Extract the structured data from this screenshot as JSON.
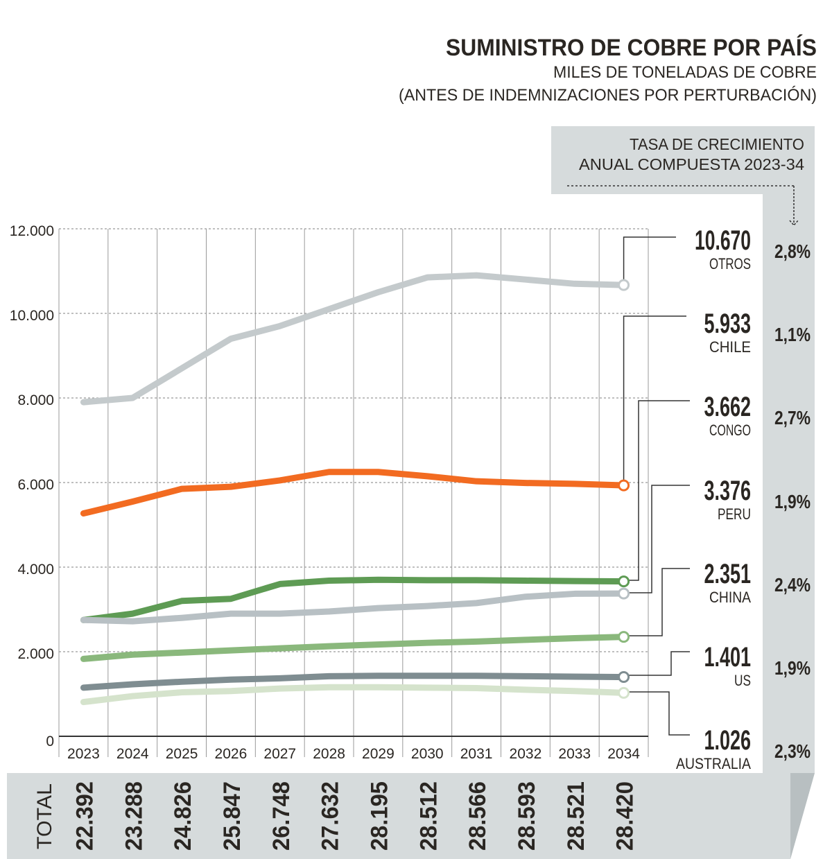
{
  "chart_data": {
    "type": "line",
    "title": "SUMINISTRO DE COBRE POR PAÍS",
    "subtitle_1": "MILES DE TONELADAS DE COBRE",
    "subtitle_2": "(ANTES DE INDEMNIZACIONES POR PERTURBACIÓN)",
    "growth_header_1": "TASA DE CRECIMIENTO",
    "growth_header_2": "ANUAL COMPUESTA 2023-34",
    "xlabel": "",
    "ylabel": "",
    "ylim": [
      0,
      12000
    ],
    "yticks": [
      0,
      2000,
      4000,
      6000,
      8000,
      10000,
      12000
    ],
    "ytick_labels": [
      "0",
      "2.000",
      "4.000",
      "6.000",
      "8.000",
      "10.000",
      "12.000"
    ],
    "categories": [
      "2023",
      "2024",
      "2025",
      "2026",
      "2027",
      "2028",
      "2029",
      "2030",
      "2031",
      "2032",
      "2033",
      "2034"
    ],
    "grid": true,
    "series": [
      {
        "name": "OTROS",
        "color": "#c4cacc",
        "end_label": "10.670",
        "cagr": "2,8%",
        "values": [
          7900,
          8000,
          8700,
          9400,
          9700,
          10100,
          10500,
          10850,
          10900,
          10800,
          10700,
          10670
        ]
      },
      {
        "name": "CHILE",
        "color": "#f26b21",
        "end_label": "5.933",
        "cagr": "1,1%",
        "values": [
          5270,
          5550,
          5850,
          5900,
          6050,
          6250,
          6250,
          6150,
          6030,
          5990,
          5970,
          5933
        ]
      },
      {
        "name": "CONGO",
        "color": "#5e9b54",
        "end_label": "3.662",
        "cagr": "2,7%",
        "values": [
          2750,
          2900,
          3200,
          3250,
          3600,
          3680,
          3700,
          3690,
          3690,
          3680,
          3670,
          3662
        ]
      },
      {
        "name": "PERU",
        "color": "#b8c0c4",
        "end_label": "3.376",
        "cagr": "1,9%",
        "values": [
          2750,
          2720,
          2800,
          2900,
          2900,
          2950,
          3030,
          3080,
          3150,
          3300,
          3370,
          3376
        ]
      },
      {
        "name": "CHINA",
        "color": "#8ab87c",
        "end_label": "2.351",
        "cagr": "2,4%",
        "values": [
          1830,
          1930,
          1980,
          2030,
          2080,
          2130,
          2170,
          2210,
          2240,
          2280,
          2320,
          2351
        ]
      },
      {
        "name": "US",
        "color": "#7f8d91",
        "end_label": "1.401",
        "cagr": "1,9%",
        "values": [
          1150,
          1230,
          1290,
          1340,
          1370,
          1420,
          1430,
          1430,
          1430,
          1420,
          1410,
          1401
        ]
      },
      {
        "name": "AUSTRALIA",
        "color": "#d5e3cc",
        "end_label": "1.026",
        "cagr": "2,3%",
        "values": [
          810,
          950,
          1040,
          1070,
          1130,
          1160,
          1160,
          1150,
          1140,
          1100,
          1070,
          1026
        ]
      }
    ],
    "totals_label": "TOTAL",
    "totals": [
      "22.392",
      "23.288",
      "24.826",
      "25.847",
      "26.748",
      "27.632",
      "28.195",
      "28.512",
      "28.566",
      "28.593",
      "28.521",
      "28.420"
    ]
  }
}
